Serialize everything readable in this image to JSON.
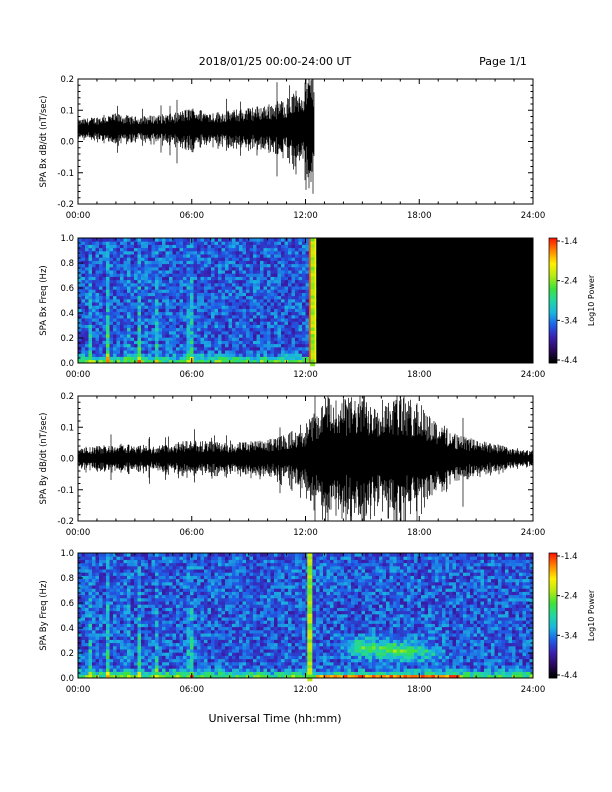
{
  "header": {
    "title": "2018/01/25  00:00-24:00 UT",
    "page": "Page 1/1"
  },
  "footer": {
    "xlabel": "Universal Time (hh:mm)"
  },
  "colors": {
    "trace": "#000000",
    "background": "#ffffff",
    "colormap": [
      "#000000",
      "#2a0a5e",
      "#3a1fb0",
      "#1f5ee8",
      "#1ab4e0",
      "#22d7a0",
      "#3ee23a",
      "#b8ea12",
      "#fff000",
      "#ff8a00",
      "#ff1a00"
    ]
  },
  "chart_data": [
    {
      "type": "line",
      "panel": "bx-waveform",
      "ylabel": "SPA Bx dB/dt (nT/sec)",
      "xticks": [
        "00:00",
        "06:00",
        "12:00",
        "18:00",
        "24:00"
      ],
      "yticks": [
        "-0.2",
        "-0.1",
        "0.0",
        "0.1",
        "0.2"
      ],
      "xlim": [
        0,
        24
      ],
      "ylim": [
        -0.2,
        0.2
      ],
      "data_end_hour": 12.45,
      "envelope": {
        "x": [
          0,
          1,
          2,
          3,
          4,
          5,
          6,
          7,
          8,
          9,
          10,
          11,
          12,
          12.45
        ],
        "half_amplitude": [
          0.03,
          0.04,
          0.05,
          0.04,
          0.045,
          0.05,
          0.07,
          0.055,
          0.06,
          0.07,
          0.08,
          0.1,
          0.15,
          0.2
        ]
      },
      "offset": 0.04
    },
    {
      "type": "heatmap",
      "panel": "bx-spectrogram",
      "ylabel": "SPA Bx Freq (Hz)",
      "colorbar_label": "Log10 Power",
      "colorbar_ticks": [
        "-1.4",
        "-2.4",
        "-3.4",
        "-4.4"
      ],
      "clim": [
        -4.4,
        -1.4
      ],
      "xticks": [
        "00:00",
        "06:00",
        "12:00",
        "18:00",
        "24:00"
      ],
      "yticks": [
        "0.0",
        "0.2",
        "0.4",
        "0.6",
        "0.8",
        "1.0"
      ],
      "xlim": [
        0,
        24
      ],
      "ylim": [
        0,
        1
      ],
      "data_end_hour": 12.45,
      "spikes_hours": [
        0.5,
        1.5,
        2.5,
        3.1,
        4.0,
        5.8,
        5.95,
        12.3
      ],
      "bright_band_hour": 12.35
    },
    {
      "type": "line",
      "panel": "by-waveform",
      "ylabel": "SPA By dB/dt (nT/sec)",
      "xticks": [
        "00:00",
        "06:00",
        "12:00",
        "18:00",
        "24:00"
      ],
      "yticks": [
        "-0.2",
        "-0.1",
        "0.0",
        "0.1",
        "0.2"
      ],
      "xlim": [
        0,
        24
      ],
      "ylim": [
        -0.2,
        0.2
      ],
      "data_end_hour": 24,
      "envelope": {
        "x": [
          0,
          2,
          4,
          6,
          8,
          10,
          11,
          12,
          13,
          14,
          15,
          16,
          17,
          18,
          19,
          20,
          21,
          22,
          23,
          24
        ],
        "half_amplitude": [
          0.03,
          0.05,
          0.04,
          0.06,
          0.05,
          0.06,
          0.08,
          0.11,
          0.2,
          0.2,
          0.2,
          0.2,
          0.2,
          0.18,
          0.12,
          0.08,
          0.06,
          0.05,
          0.03,
          0.025
        ]
      },
      "offset": 0.0
    },
    {
      "type": "heatmap",
      "panel": "by-spectrogram",
      "ylabel": "SPA By Freq (Hz)",
      "colorbar_label": "Log10 Power",
      "colorbar_ticks": [
        "-1.4",
        "-2.4",
        "-3.4",
        "-4.4"
      ],
      "clim": [
        -4.4,
        -1.4
      ],
      "xticks": [
        "00:00",
        "06:00",
        "12:00",
        "18:00",
        "24:00"
      ],
      "yticks": [
        "0.0",
        "0.2",
        "0.4",
        "0.6",
        "0.8",
        "1.0"
      ],
      "xlim": [
        0,
        24
      ],
      "ylim": [
        0,
        1
      ],
      "data_end_hour": 24,
      "spikes_hours": [
        0.5,
        1.5,
        2.5,
        3.1,
        4.0,
        5.8,
        5.95
      ],
      "bright_band_hour": 12.2,
      "emission_band": {
        "start_hour": 13.5,
        "end_hour": 19.5,
        "freq_center": 0.27,
        "freq_width": 0.12
      }
    }
  ]
}
